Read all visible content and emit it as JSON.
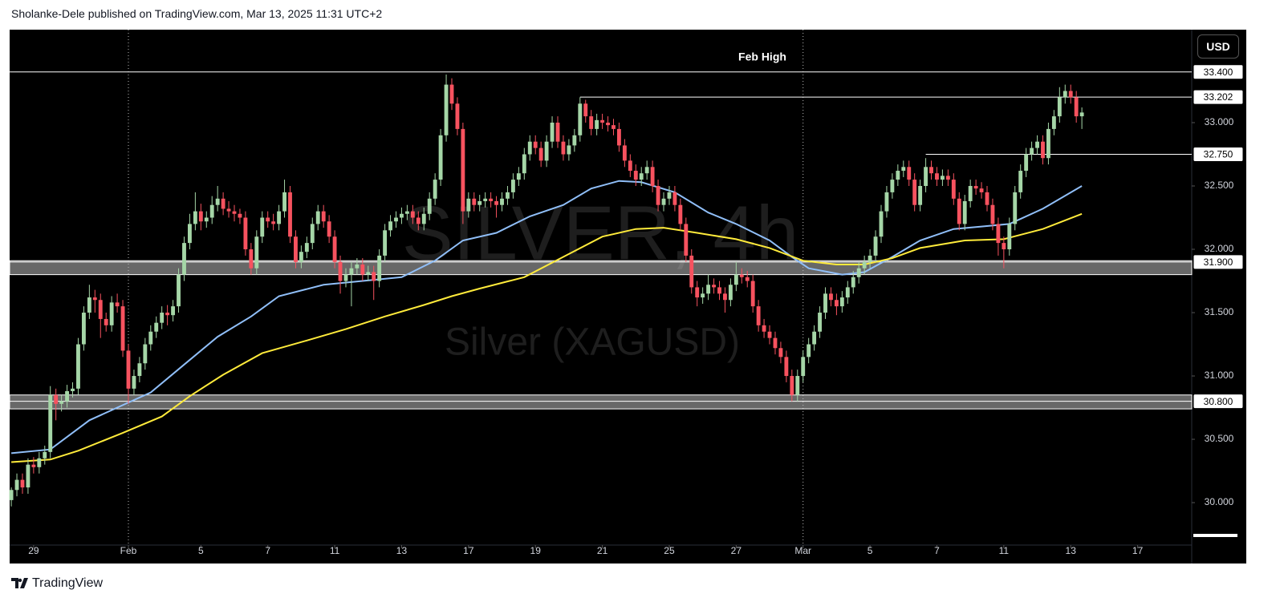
{
  "header": "Sholanke-Dele published on TradingView.com, Mar 13, 2025 11:31 UTC+2",
  "footer": "TradingView",
  "chart_data": {
    "type": "candlestick",
    "title": "SILVER, 4h",
    "subtitle": "Silver (XAGUSD)",
    "currency": "USD",
    "up_color": "#a5d6a7",
    "down_color": "#f7525f",
    "ohlc": [
      [
        30.02,
        30.12,
        29.97,
        30.1
      ],
      [
        30.1,
        30.23,
        30.05,
        30.18
      ],
      [
        30.18,
        30.23,
        30.07,
        30.12
      ],
      [
        30.12,
        30.35,
        30.07,
        30.3
      ],
      [
        30.3,
        30.36,
        30.23,
        30.28
      ],
      [
        30.28,
        30.4,
        30.23,
        30.35
      ],
      [
        30.35,
        30.45,
        30.3,
        30.4
      ],
      [
        30.4,
        30.92,
        30.35,
        30.85
      ],
      [
        30.85,
        30.9,
        30.65,
        30.78
      ],
      [
        30.78,
        30.85,
        30.72,
        30.8
      ],
      [
        30.8,
        30.93,
        30.75,
        30.88
      ],
      [
        30.88,
        30.95,
        30.83,
        30.9
      ],
      [
        30.9,
        31.3,
        30.85,
        31.25
      ],
      [
        31.25,
        31.55,
        31.2,
        31.5
      ],
      [
        31.5,
        31.72,
        31.45,
        31.62
      ],
      [
        31.62,
        31.68,
        31.5,
        31.6
      ],
      [
        31.6,
        31.65,
        31.3,
        31.45
      ],
      [
        31.45,
        31.5,
        31.35,
        31.4
      ],
      [
        31.4,
        31.63,
        31.35,
        31.58
      ],
      [
        31.58,
        31.65,
        31.5,
        31.55
      ],
      [
        31.55,
        31.6,
        31.15,
        31.2
      ],
      [
        31.2,
        31.25,
        30.78,
        30.9
      ],
      [
        30.9,
        31.05,
        30.85,
        31.0
      ],
      [
        31.0,
        31.15,
        30.95,
        31.1
      ],
      [
        31.1,
        31.3,
        31.05,
        31.25
      ],
      [
        31.25,
        31.4,
        31.2,
        31.35
      ],
      [
        31.35,
        31.47,
        31.3,
        31.42
      ],
      [
        31.42,
        31.55,
        31.37,
        31.5
      ],
      [
        31.5,
        31.56,
        31.4,
        31.48
      ],
      [
        31.48,
        31.6,
        31.43,
        31.55
      ],
      [
        31.55,
        31.85,
        31.5,
        31.8
      ],
      [
        31.8,
        32.1,
        31.75,
        32.05
      ],
      [
        32.05,
        32.28,
        32.0,
        32.2
      ],
      [
        32.2,
        32.45,
        32.15,
        32.3
      ],
      [
        32.3,
        32.36,
        32.15,
        32.22
      ],
      [
        32.22,
        32.3,
        32.17,
        32.25
      ],
      [
        32.25,
        32.42,
        32.2,
        32.35
      ],
      [
        32.35,
        32.5,
        32.3,
        32.4
      ],
      [
        32.4,
        32.45,
        32.27,
        32.32
      ],
      [
        32.32,
        32.38,
        32.25,
        32.3
      ],
      [
        32.3,
        32.35,
        32.22,
        32.28
      ],
      [
        32.28,
        32.32,
        32.2,
        32.25
      ],
      [
        32.25,
        32.3,
        31.95,
        32.0
      ],
      [
        32.0,
        32.05,
        31.8,
        31.85
      ],
      [
        31.85,
        32.15,
        31.8,
        32.1
      ],
      [
        32.1,
        32.3,
        32.05,
        32.25
      ],
      [
        32.25,
        32.3,
        32.17,
        32.22
      ],
      [
        32.22,
        32.28,
        32.15,
        32.2
      ],
      [
        32.2,
        32.35,
        32.15,
        32.3
      ],
      [
        32.3,
        32.55,
        32.25,
        32.45
      ],
      [
        32.45,
        32.5,
        32.05,
        32.1
      ],
      [
        32.1,
        32.15,
        31.85,
        31.9
      ],
      [
        31.9,
        32.03,
        31.85,
        31.98
      ],
      [
        31.98,
        32.1,
        31.93,
        32.05
      ],
      [
        32.05,
        32.25,
        32.0,
        32.2
      ],
      [
        32.2,
        32.35,
        32.15,
        32.3
      ],
      [
        32.3,
        32.35,
        32.17,
        32.22
      ],
      [
        32.22,
        32.27,
        32.05,
        32.1
      ],
      [
        32.1,
        32.15,
        31.85,
        31.9
      ],
      [
        31.9,
        31.95,
        31.65,
        31.75
      ],
      [
        31.75,
        31.85,
        31.7,
        31.8
      ],
      [
        31.8,
        31.9,
        31.55,
        31.85
      ],
      [
        31.85,
        31.93,
        31.8,
        31.88
      ],
      [
        31.88,
        31.93,
        31.75,
        31.8
      ],
      [
        31.8,
        31.87,
        31.75,
        31.82
      ],
      [
        31.82,
        31.87,
        31.6,
        31.75
      ],
      [
        31.75,
        32.0,
        31.7,
        31.95
      ],
      [
        31.95,
        32.2,
        31.9,
        32.15
      ],
      [
        32.15,
        32.27,
        32.1,
        32.22
      ],
      [
        32.22,
        32.3,
        32.17,
        32.25
      ],
      [
        32.25,
        32.33,
        32.2,
        32.28
      ],
      [
        32.28,
        32.35,
        32.23,
        32.3
      ],
      [
        32.3,
        32.35,
        32.2,
        32.25
      ],
      [
        32.25,
        32.3,
        32.15,
        32.2
      ],
      [
        32.2,
        32.33,
        32.15,
        32.28
      ],
      [
        32.28,
        32.45,
        32.23,
        32.4
      ],
      [
        32.4,
        32.6,
        32.35,
        32.55
      ],
      [
        32.55,
        32.95,
        32.5,
        32.9
      ],
      [
        32.9,
        33.38,
        32.85,
        33.3
      ],
      [
        33.3,
        33.35,
        33.1,
        33.15
      ],
      [
        33.15,
        33.2,
        32.9,
        32.95
      ],
      [
        32.95,
        33.0,
        32.2,
        32.3
      ],
      [
        32.3,
        32.45,
        32.25,
        32.4
      ],
      [
        32.4,
        32.45,
        32.3,
        32.35
      ],
      [
        32.35,
        32.43,
        32.3,
        32.38
      ],
      [
        32.38,
        32.45,
        32.33,
        32.4
      ],
      [
        32.4,
        32.45,
        32.33,
        32.38
      ],
      [
        32.38,
        32.42,
        32.25,
        32.35
      ],
      [
        32.35,
        32.45,
        32.3,
        32.4
      ],
      [
        32.4,
        32.5,
        32.35,
        32.45
      ],
      [
        32.45,
        32.6,
        32.4,
        32.55
      ],
      [
        32.55,
        32.65,
        32.5,
        32.6
      ],
      [
        32.6,
        32.8,
        32.55,
        32.75
      ],
      [
        32.75,
        32.9,
        32.7,
        32.85
      ],
      [
        32.85,
        32.9,
        32.75,
        32.8
      ],
      [
        32.8,
        32.85,
        32.65,
        32.7
      ],
      [
        32.7,
        32.9,
        32.65,
        32.85
      ],
      [
        32.85,
        33.05,
        32.8,
        33.0
      ],
      [
        33.0,
        33.05,
        32.8,
        32.85
      ],
      [
        32.85,
        32.9,
        32.7,
        32.75
      ],
      [
        32.75,
        32.87,
        32.7,
        32.82
      ],
      [
        32.82,
        32.95,
        32.77,
        32.9
      ],
      [
        32.9,
        33.2,
        32.85,
        33.15
      ],
      [
        33.15,
        33.18,
        33.0,
        33.05
      ],
      [
        33.05,
        33.1,
        32.9,
        32.95
      ],
      [
        32.95,
        33.07,
        32.9,
        33.02
      ],
      [
        33.02,
        33.07,
        32.95,
        33.0
      ],
      [
        33.0,
        33.05,
        32.93,
        32.98
      ],
      [
        32.98,
        33.03,
        32.9,
        32.95
      ],
      [
        32.95,
        33.0,
        32.77,
        32.82
      ],
      [
        32.82,
        32.87,
        32.65,
        32.7
      ],
      [
        32.7,
        32.75,
        32.57,
        32.62
      ],
      [
        32.62,
        32.67,
        32.5,
        32.55
      ],
      [
        32.55,
        32.65,
        32.5,
        32.6
      ],
      [
        32.6,
        32.7,
        32.55,
        32.65
      ],
      [
        32.65,
        32.7,
        32.45,
        32.5
      ],
      [
        32.5,
        32.55,
        32.3,
        32.35
      ],
      [
        32.35,
        32.45,
        32.3,
        32.4
      ],
      [
        32.4,
        32.5,
        32.35,
        32.45
      ],
      [
        32.45,
        32.5,
        32.3,
        32.35
      ],
      [
        32.35,
        32.4,
        32.15,
        32.2
      ],
      [
        32.2,
        32.25,
        31.9,
        31.95
      ],
      [
        31.95,
        32.0,
        31.65,
        31.7
      ],
      [
        31.7,
        31.75,
        31.55,
        31.62
      ],
      [
        31.62,
        31.7,
        31.57,
        31.65
      ],
      [
        31.65,
        31.8,
        31.6,
        31.72
      ],
      [
        31.72,
        31.77,
        31.65,
        31.7
      ],
      [
        31.7,
        31.75,
        31.6,
        31.65
      ],
      [
        31.65,
        31.7,
        31.5,
        31.6
      ],
      [
        31.6,
        31.77,
        31.55,
        31.72
      ],
      [
        31.72,
        31.9,
        31.67,
        31.8
      ],
      [
        31.8,
        31.85,
        31.73,
        31.78
      ],
      [
        31.78,
        31.83,
        31.7,
        31.75
      ],
      [
        31.75,
        31.8,
        31.5,
        31.55
      ],
      [
        31.55,
        31.6,
        31.35,
        31.4
      ],
      [
        31.4,
        31.45,
        31.3,
        31.35
      ],
      [
        31.35,
        31.4,
        31.25,
        31.3
      ],
      [
        31.3,
        31.35,
        31.17,
        31.22
      ],
      [
        31.22,
        31.27,
        31.1,
        31.15
      ],
      [
        31.15,
        31.2,
        30.95,
        31.0
      ],
      [
        31.0,
        31.05,
        30.8,
        30.85
      ],
      [
        30.85,
        31.05,
        30.8,
        31.0
      ],
      [
        31.0,
        31.2,
        30.95,
        31.15
      ],
      [
        31.15,
        31.3,
        31.1,
        31.25
      ],
      [
        31.25,
        31.4,
        31.2,
        31.35
      ],
      [
        31.35,
        31.55,
        31.3,
        31.5
      ],
      [
        31.5,
        31.7,
        31.45,
        31.65
      ],
      [
        31.65,
        31.7,
        31.55,
        31.6
      ],
      [
        31.6,
        31.65,
        31.48,
        31.55
      ],
      [
        31.55,
        31.67,
        31.5,
        31.62
      ],
      [
        31.62,
        31.75,
        31.57,
        31.7
      ],
      [
        31.7,
        31.83,
        31.65,
        31.78
      ],
      [
        31.78,
        31.9,
        31.73,
        31.85
      ],
      [
        31.85,
        31.95,
        31.8,
        31.9
      ],
      [
        31.9,
        32.0,
        31.85,
        31.95
      ],
      [
        31.95,
        32.15,
        31.9,
        32.1
      ],
      [
        32.1,
        32.35,
        32.05,
        32.3
      ],
      [
        32.3,
        32.5,
        32.25,
        32.45
      ],
      [
        32.45,
        32.6,
        32.4,
        32.55
      ],
      [
        32.55,
        32.67,
        32.5,
        32.62
      ],
      [
        32.62,
        32.7,
        32.57,
        32.65
      ],
      [
        32.65,
        32.7,
        32.5,
        32.55
      ],
      [
        32.55,
        32.6,
        32.3,
        32.35
      ],
      [
        32.35,
        32.55,
        32.3,
        32.5
      ],
      [
        32.5,
        32.72,
        32.45,
        32.65
      ],
      [
        32.65,
        32.7,
        32.55,
        32.6
      ],
      [
        32.6,
        32.65,
        32.5,
        32.55
      ],
      [
        32.55,
        32.63,
        32.5,
        32.58
      ],
      [
        32.58,
        32.63,
        32.5,
        32.55
      ],
      [
        32.55,
        32.6,
        32.35,
        32.4
      ],
      [
        32.4,
        32.45,
        32.15,
        32.2
      ],
      [
        32.2,
        32.43,
        32.15,
        32.38
      ],
      [
        32.38,
        32.55,
        32.33,
        32.5
      ],
      [
        32.5,
        32.55,
        32.43,
        32.48
      ],
      [
        32.48,
        32.53,
        32.4,
        32.45
      ],
      [
        32.45,
        32.5,
        32.3,
        32.35
      ],
      [
        32.35,
        32.4,
        32.15,
        32.2
      ],
      [
        32.2,
        32.25,
        31.95,
        32.05
      ],
      [
        32.05,
        32.1,
        31.85,
        32.0
      ],
      [
        32.0,
        32.25,
        31.95,
        32.2
      ],
      [
        32.2,
        32.5,
        32.15,
        32.45
      ],
      [
        32.45,
        32.67,
        32.4,
        32.62
      ],
      [
        32.62,
        32.8,
        32.57,
        32.75
      ],
      [
        32.75,
        32.85,
        32.7,
        32.8
      ],
      [
        32.8,
        32.9,
        32.75,
        32.85
      ],
      [
        32.85,
        32.9,
        32.67,
        32.72
      ],
      [
        32.72,
        33.0,
        32.67,
        32.95
      ],
      [
        32.95,
        33.1,
        32.9,
        33.05
      ],
      [
        33.05,
        33.28,
        33.0,
        33.2
      ],
      [
        33.2,
        33.3,
        33.15,
        33.25
      ],
      [
        33.25,
        33.3,
        33.15,
        33.2
      ],
      [
        33.2,
        33.25,
        33.0,
        33.05
      ],
      [
        33.05,
        33.12,
        32.95,
        33.08
      ]
    ],
    "lines": [
      {
        "color": "#90bff9",
        "x": [
          0,
          7,
          14,
          20,
          25,
          31,
          37,
          43,
          48,
          56,
          63,
          70,
          76,
          81,
          87,
          93,
          99,
          104,
          109,
          113,
          119,
          125,
          130,
          136,
          140,
          143,
          149,
          153,
          158,
          163,
          169,
          174,
          179,
          185,
          192
        ],
        "values": [
          30.39,
          30.42,
          30.65,
          30.77,
          30.87,
          31.09,
          31.31,
          31.47,
          31.63,
          31.72,
          31.75,
          31.78,
          31.91,
          32.07,
          32.13,
          32.26,
          32.35,
          32.48,
          32.54,
          32.53,
          32.45,
          32.29,
          32.2,
          32.07,
          31.94,
          31.85,
          31.8,
          31.82,
          31.94,
          32.07,
          32.16,
          32.18,
          32.2,
          32.32,
          32.5
        ]
      },
      {
        "color": "#ffeb3b",
        "x": [
          0,
          7,
          12,
          20,
          27,
          32,
          38,
          45,
          53,
          60,
          67,
          74,
          79,
          84,
          92,
          99,
          106,
          112,
          117,
          123,
          130,
          136,
          142,
          148,
          153,
          158,
          163,
          171,
          178,
          185,
          192
        ],
        "values": [
          30.32,
          30.34,
          30.41,
          30.55,
          30.68,
          30.84,
          31.01,
          31.18,
          31.28,
          31.37,
          31.47,
          31.56,
          31.63,
          31.69,
          31.78,
          31.94,
          32.1,
          32.16,
          32.17,
          32.13,
          32.08,
          32.01,
          31.91,
          31.88,
          31.88,
          31.93,
          32.01,
          32.07,
          32.08,
          32.16,
          32.28
        ]
      }
    ],
    "levels": [
      {
        "value": 33.4,
        "label": "33.400",
        "note": "Feb High"
      },
      {
        "value": 33.202,
        "label": "33.202",
        "start": 102
      },
      {
        "value": 32.75,
        "label": "32.750",
        "start": 164
      },
      {
        "value": 31.9,
        "label": "31.900",
        "band": [
          31.8,
          31.91
        ]
      },
      {
        "value": 30.8,
        "label": "30.800",
        "band": [
          30.74,
          30.85
        ]
      }
    ],
    "xlim": [
      -0.3,
      211.7
    ],
    "xticks": [
      {
        "value": 4,
        "label": "29"
      },
      {
        "value": 21,
        "label": "Feb"
      },
      {
        "value": 34,
        "label": "5"
      },
      {
        "value": 46,
        "label": "7"
      },
      {
        "value": 58,
        "label": "11"
      },
      {
        "value": 70,
        "label": "13"
      },
      {
        "value": 82,
        "label": "17"
      },
      {
        "value": 94,
        "label": "19"
      },
      {
        "value": 106,
        "label": "21"
      },
      {
        "value": 118,
        "label": "25"
      },
      {
        "value": 130,
        "label": "27"
      },
      {
        "value": 142,
        "label": "Mar"
      },
      {
        "value": 154,
        "label": "5"
      },
      {
        "value": 166,
        "label": "7"
      },
      {
        "value": 178,
        "label": "11"
      },
      {
        "value": 190,
        "label": "13"
      },
      {
        "value": 202,
        "label": "17"
      }
    ],
    "ylim": [
      29.665,
      33.734
    ],
    "yticks": [
      {
        "value": 30,
        "label": "30.000"
      },
      {
        "value": 30.5,
        "label": "30.500"
      },
      {
        "value": 31,
        "label": "31.000"
      },
      {
        "value": 31.5,
        "label": "31.500"
      },
      {
        "value": 32,
        "label": "32.000"
      },
      {
        "value": 32.5,
        "label": "32.500"
      },
      {
        "value": 33,
        "label": "33.000"
      }
    ]
  }
}
